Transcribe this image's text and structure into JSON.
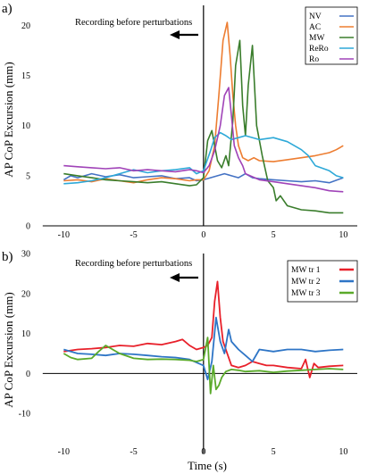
{
  "chart_data": [
    {
      "panel_label": "a)",
      "type": "line",
      "title": "",
      "xlabel": "",
      "ylabel": "AP CoP Excursion (mm)",
      "annotation": "Recording before perturbations",
      "xlim": [
        -12,
        11
      ],
      "ylim": [
        0,
        22
      ],
      "x_ticks": [
        "-10",
        "-5",
        "0",
        "5",
        "10"
      ],
      "y_ticks": [
        "0",
        "5",
        "10",
        "15",
        "20"
      ],
      "legend_position": "top-right",
      "series": [
        {
          "name": "NV",
          "color": "#4472c4",
          "x": [
            -10,
            -9.5,
            -9,
            -8,
            -7,
            -6,
            -5,
            -4,
            -3,
            -2,
            -1,
            -0.5,
            0,
            0.5,
            1,
            1.5,
            2,
            2.5,
            3,
            3.5,
            4,
            5,
            6,
            7,
            8,
            9,
            10
          ],
          "y": [
            4.6,
            5.0,
            4.8,
            5.2,
            4.9,
            5.1,
            4.8,
            4.9,
            5.0,
            4.7,
            4.8,
            4.5,
            4.6,
            4.8,
            5.0,
            5.2,
            5.0,
            4.8,
            5.2,
            4.8,
            4.7,
            4.6,
            4.5,
            4.4,
            4.5,
            4.3,
            4.8
          ]
        },
        {
          "name": "AC",
          "color": "#ed7d31",
          "x": [
            -10,
            -9,
            -8,
            -7,
            -6,
            -5,
            -4,
            -3,
            -2,
            -1,
            -0.5,
            0,
            0.4,
            0.8,
            1.1,
            1.4,
            1.7,
            1.9,
            2.1,
            2.3,
            2.5,
            2.8,
            3.2,
            3.6,
            4,
            5,
            6,
            7,
            8,
            9,
            9.5,
            10
          ],
          "y": [
            4.5,
            4.6,
            4.4,
            4.7,
            4.5,
            4.3,
            4.6,
            4.8,
            4.7,
            4.5,
            4.6,
            4.6,
            5.5,
            8.0,
            13.0,
            18.5,
            20.3,
            17.0,
            13.0,
            10.0,
            8.0,
            6.8,
            6.5,
            6.8,
            6.5,
            6.4,
            6.6,
            6.8,
            7.0,
            7.3,
            7.6,
            8.0
          ]
        },
        {
          "name": "MW",
          "color": "#3a7d2c",
          "x": [
            -10,
            -9,
            -8,
            -7,
            -6,
            -5,
            -4,
            -3,
            -2,
            -1,
            -0.5,
            0,
            0.3,
            0.6,
            1.0,
            1.3,
            1.6,
            1.8,
            2.1,
            2.3,
            2.6,
            2.8,
            3.0,
            3.2,
            3.5,
            3.8,
            4.2,
            4.6,
            5.0,
            5.2,
            5.5,
            6,
            7,
            8,
            9,
            10
          ],
          "y": [
            5.2,
            5.0,
            4.8,
            4.6,
            4.5,
            4.4,
            4.3,
            4.4,
            4.2,
            4.0,
            4.1,
            4.8,
            8.5,
            9.5,
            6.5,
            5.8,
            7.0,
            6.0,
            10.5,
            16.0,
            18.5,
            12.0,
            9.0,
            14.0,
            18.0,
            10.0,
            7.0,
            4.5,
            3.8,
            2.5,
            3.0,
            2.0,
            1.6,
            1.5,
            1.3,
            1.3
          ]
        },
        {
          "name": "ReRo",
          "color": "#2ea9d8",
          "x": [
            -10,
            -9,
            -8,
            -7,
            -6,
            -5,
            -4,
            -3,
            -2,
            -1,
            -0.5,
            0,
            0.5,
            0.8,
            1.2,
            1.6,
            2.0,
            2.5,
            3,
            4,
            5,
            6,
            7,
            7.5,
            8,
            9,
            9.5,
            10
          ],
          "y": [
            4.2,
            4.3,
            4.5,
            4.8,
            5.2,
            5.6,
            5.3,
            5.5,
            5.6,
            5.8,
            5.2,
            5.5,
            7.5,
            8.8,
            9.3,
            9.0,
            8.6,
            8.8,
            9.0,
            8.6,
            8.8,
            8.4,
            7.6,
            7.0,
            6.0,
            5.5,
            5.0,
            4.8
          ]
        },
        {
          "name": "Ro",
          "color": "#a043b8",
          "x": [
            -10,
            -9,
            -8,
            -7,
            -6,
            -5,
            -4,
            -3,
            -2,
            -1,
            -0.5,
            0,
            0.4,
            0.8,
            1.2,
            1.5,
            1.8,
            2.0,
            2.2,
            2.5,
            2.8,
            3,
            4,
            5,
            6,
            7,
            8,
            9,
            10
          ],
          "y": [
            6.0,
            5.9,
            5.8,
            5.7,
            5.8,
            5.5,
            5.6,
            5.5,
            5.4,
            5.6,
            5.5,
            5.3,
            6.0,
            7.5,
            10.0,
            13.0,
            13.8,
            11.0,
            8.0,
            6.8,
            6.0,
            5.2,
            4.6,
            4.4,
            4.2,
            4.0,
            3.8,
            3.5,
            3.4
          ]
        }
      ]
    },
    {
      "panel_label": "b)",
      "type": "line",
      "title": "",
      "xlabel": "Time (s)",
      "ylabel": "AP CoP Excursion (mm)",
      "annotation": "Recording before perturbations",
      "xlim": [
        -12,
        11
      ],
      "ylim": [
        -20,
        30
      ],
      "x_ticks": [
        "-10",
        "-5",
        "0",
        "5",
        "10"
      ],
      "y_ticks": [
        "-10",
        "0",
        "10",
        "20",
        "30"
      ],
      "legend_position": "top-right",
      "series": [
        {
          "name": "MW tr 1",
          "color": "#e8202a",
          "x": [
            -10,
            -9,
            -8,
            -7,
            -6,
            -5,
            -4,
            -3,
            -2,
            -1.5,
            -1,
            -0.5,
            0,
            0.3,
            0.6,
            0.8,
            1.0,
            1.2,
            1.4,
            1.7,
            2.0,
            2.5,
            3,
            3.5,
            4,
            4.5,
            5,
            6,
            7,
            7.3,
            7.6,
            7.9,
            8.2,
            9,
            10
          ],
          "y": [
            5.5,
            6.0,
            6.2,
            6.5,
            7.0,
            6.8,
            7.5,
            7.2,
            8.0,
            8.5,
            7.0,
            6.0,
            6.5,
            7.0,
            9.0,
            18.0,
            23.0,
            14.0,
            8.0,
            5.0,
            2.0,
            1.5,
            2.0,
            3.0,
            2.5,
            2.0,
            2.0,
            1.5,
            1.2,
            3.5,
            -1.0,
            2.5,
            1.5,
            1.8,
            2.0
          ]
        },
        {
          "name": "MW tr 2",
          "color": "#2e75c6",
          "x": [
            -10,
            -9,
            -8,
            -7,
            -6,
            -5,
            -4,
            -3,
            -2,
            -1,
            0,
            0.3,
            0.6,
            0.9,
            1.2,
            1.5,
            1.8,
            2.0,
            2.5,
            3,
            3.5,
            4,
            5,
            6,
            7,
            8,
            9,
            10
          ],
          "y": [
            6.0,
            5.0,
            4.8,
            4.5,
            5.0,
            4.8,
            4.5,
            4.2,
            4.0,
            3.5,
            2.0,
            -1.5,
            3.0,
            14.0,
            8.0,
            5.0,
            11.0,
            8.0,
            6.0,
            4.5,
            3.0,
            6.0,
            5.5,
            6.0,
            6.0,
            5.5,
            5.8,
            6.0
          ]
        },
        {
          "name": "MW tr 3",
          "color": "#5aaa2a",
          "x": [
            -10,
            -9.5,
            -9,
            -8,
            -7.5,
            -7,
            -6,
            -5,
            -4,
            -3,
            -2,
            -1,
            -0.5,
            0,
            0.3,
            0.5,
            0.7,
            0.9,
            1.1,
            1.3,
            1.6,
            2.0,
            2.5,
            3,
            4,
            5,
            6,
            7,
            8,
            9,
            10
          ],
          "y": [
            5.0,
            4.0,
            3.5,
            3.8,
            5.5,
            7.0,
            5.0,
            3.8,
            3.5,
            3.6,
            3.5,
            3.3,
            3.0,
            3.5,
            9.0,
            -5.0,
            2.0,
            -4.0,
            -3.0,
            -1.0,
            0.5,
            1.0,
            0.8,
            0.5,
            0.7,
            0.3,
            0.6,
            0.8,
            1.0,
            1.2,
            1.0
          ]
        }
      ]
    }
  ]
}
